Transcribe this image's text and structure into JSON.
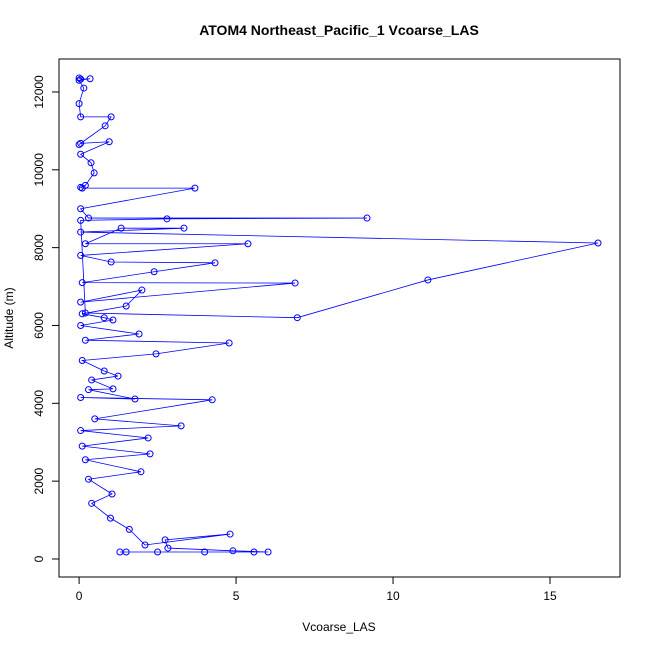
{
  "chart_data": {
    "type": "line",
    "title": "ATOM4 Northeast_Pacific_1 Vcoarse_LAS",
    "xlabel": "Vcoarse_LAS",
    "ylabel": "Altitude (m)",
    "color": "#0000ff",
    "marker": "open-circle",
    "x": [
      1.3,
      2.5,
      4.0,
      1.5,
      5.57,
      6.02,
      4.9,
      2.83,
      2.74,
      4.81,
      2.1,
      1.6,
      1.0,
      0.4,
      1.05,
      0.3,
      1.97,
      0.2,
      2.26,
      0.1,
      2.2,
      0.05,
      3.25,
      0.5,
      4.24,
      0.05,
      1.78,
      0.3,
      1.08,
      0.4,
      1.24,
      0.8,
      0.1,
      2.45,
      4.78,
      0.2,
      1.91,
      0.05,
      1.08,
      0.8,
      0.1,
      1.5,
      2.0,
      0.05,
      6.88,
      0.1,
      2.39,
      4.33,
      1.02,
      0.05,
      5.38,
      0.2,
      1.34,
      3.34,
      0.05,
      16.53,
      11.11,
      6.95,
      0.2,
      0.05,
      2.8,
      9.17,
      0.3,
      0.05,
      3.69,
      0.1,
      0.05,
      0.2,
      0.48,
      0.38,
      0.05,
      0.96,
      0.05,
      0.0,
      0.83,
      1.02,
      0.05,
      0.0,
      0.15,
      0.0,
      0.35,
      0.05,
      0.0
    ],
    "values": [
      180,
      180,
      180,
      180,
      180,
      180,
      210,
      280,
      490,
      640,
      360,
      760,
      1050,
      1430,
      1670,
      2050,
      2240,
      2550,
      2700,
      2900,
      3110,
      3300,
      3420,
      3600,
      4090,
      4150,
      4110,
      4350,
      4370,
      4600,
      4700,
      4830,
      5100,
      5270,
      5550,
      5620,
      5780,
      6000,
      6140,
      6200,
      6300,
      6500,
      6910,
      6600,
      7090,
      7100,
      7380,
      7610,
      7630,
      7800,
      8100,
      8100,
      8500,
      8500,
      8400,
      8120,
      7170,
      6200,
      6320,
      8700,
      8740,
      8760,
      8760,
      9000,
      9530,
      9530,
      9550,
      9600,
      9920,
      10180,
      10400,
      10720,
      10680,
      10650,
      11130,
      11360,
      11360,
      11700,
      12100,
      12300,
      12340,
      12330,
      12360
    ],
    "xlim": [
      -0.64,
      17.23
    ],
    "ylim": [
      -463,
      12847
    ],
    "xticks": [
      0,
      5,
      10,
      15
    ],
    "yticks": [
      0,
      2000,
      4000,
      6000,
      8000,
      10000,
      12000
    ]
  }
}
